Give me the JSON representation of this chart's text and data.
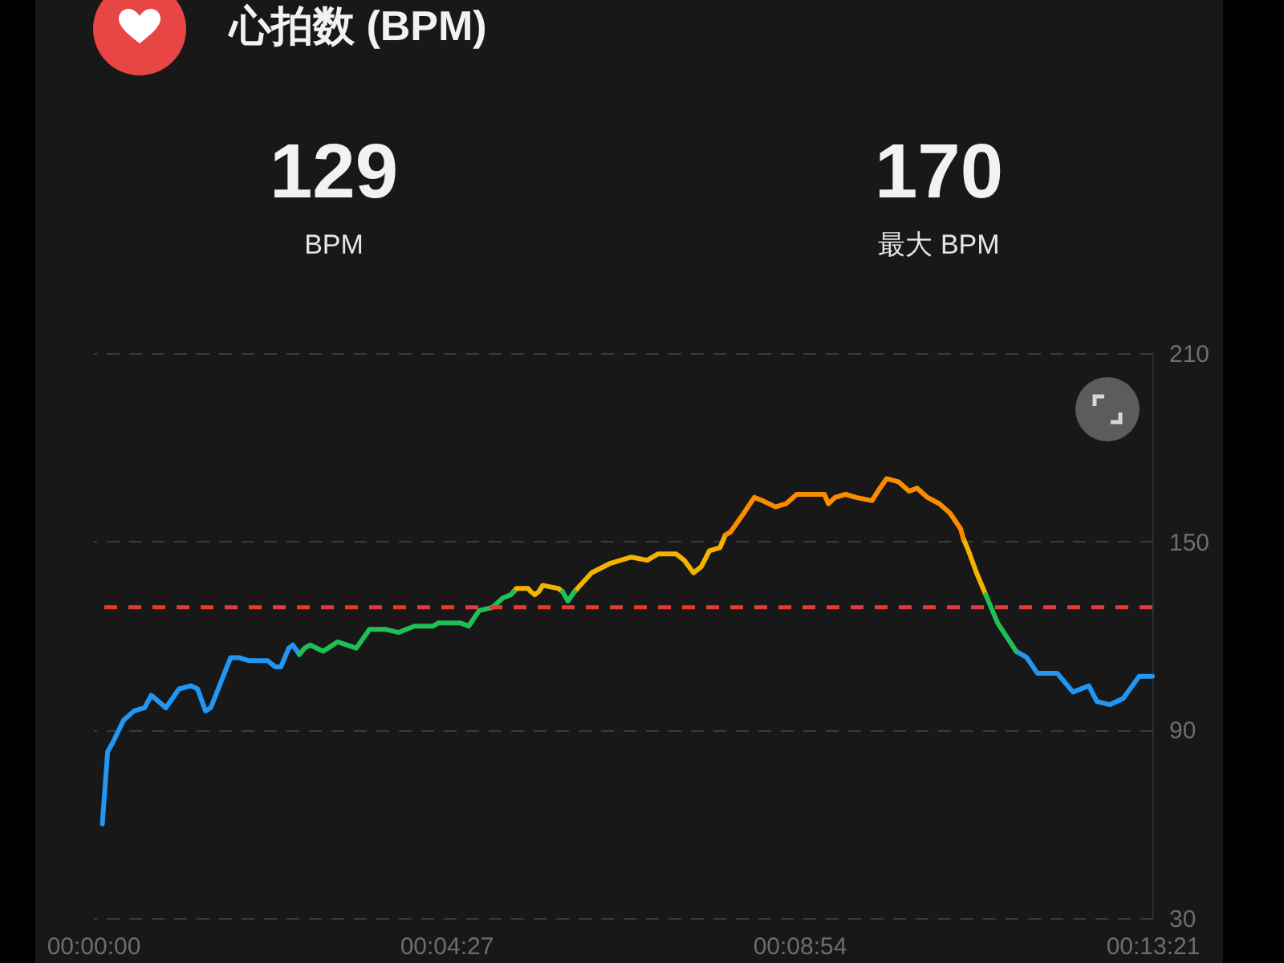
{
  "chart_data": {
    "type": "line",
    "title": "心拍数 (BPM)",
    "annotations": [
      "129",
      "BPM",
      "170",
      "最大 BPM"
    ],
    "xlim": [
      0,
      801
    ],
    "xticks": [
      {
        "value": 0,
        "label": "00:00:00"
      },
      {
        "value": 267,
        "label": "00:04:27"
      },
      {
        "value": 534,
        "label": "00:08:54"
      },
      {
        "value": 801,
        "label": "00:13:21"
      }
    ],
    "ylim": [
      30,
      210
    ],
    "yticks": [
      30,
      90,
      150,
      210
    ],
    "grid": "y",
    "ref_lines": [
      {
        "axis": "y",
        "value": 129,
        "color": "#e53935",
        "line_style": "dashed"
      }
    ],
    "x": [
      7,
      11,
      15,
      23,
      31,
      39,
      44,
      55,
      65,
      74,
      79,
      85,
      89,
      104,
      110,
      118,
      132,
      138,
      142,
      148,
      151,
      156,
      160,
      164,
      174,
      185,
      199,
      209,
      221,
      231,
      243,
      257,
      261,
      278,
      284,
      292,
      302,
      310,
      316,
      318,
      320,
      329,
      331,
      334,
      337,
      340,
      352,
      355,
      359,
      364,
      377,
      391,
      407,
      419,
      427,
      441,
      447,
      454,
      460,
      466,
      474,
      478,
      482,
      492,
      500,
      506,
      516,
      524,
      532,
      553,
      556,
      561,
      569,
      577,
      589,
      595,
      600,
      609,
      617,
      623,
      631,
      640,
      648,
      656,
      658,
      662,
      668,
      675,
      684,
      698,
      706,
      714,
      729,
      741,
      753,
      759,
      769,
      779,
      791,
      801
    ],
    "series": [
      {
        "color": "#2196f3",
        "values": [
          60,
          83,
          86,
          93,
          96,
          97,
          101,
          97,
          103,
          104,
          103,
          96,
          97,
          113,
          113,
          112,
          112,
          110,
          110,
          116,
          117,
          114,
          null,
          null,
          null,
          null,
          null,
          null,
          null,
          null,
          null,
          null,
          null,
          null,
          null,
          null,
          null,
          null,
          null,
          null,
          null,
          null,
          null,
          null,
          null,
          null,
          null,
          null,
          null,
          null,
          null,
          null,
          null,
          null,
          null,
          null,
          null,
          null,
          null,
          null,
          null,
          null,
          null,
          null,
          null,
          null,
          null,
          null,
          null,
          null,
          null,
          null,
          null,
          null,
          null,
          null,
          null,
          null,
          null,
          null,
          null,
          null,
          null,
          null,
          null,
          null,
          null,
          null,
          null,
          115,
          113,
          108,
          108,
          102,
          104,
          99,
          98,
          100,
          107,
          107
        ]
      },
      {
        "color": "#f5b301",
        "values": [
          null,
          null,
          null,
          null,
          null,
          null,
          null,
          null,
          null,
          null,
          null,
          null,
          null,
          null,
          null,
          null,
          null,
          null,
          null,
          null,
          null,
          null,
          null,
          null,
          null,
          null,
          null,
          null,
          null,
          null,
          null,
          null,
          null,
          null,
          null,
          null,
          null,
          null,
          null,
          134,
          135,
          135,
          134,
          133,
          134,
          136,
          135,
          134,
          null,
          134,
          140,
          143,
          145,
          144,
          146,
          146,
          144,
          140,
          142,
          147,
          148,
          152,
          null,
          null,
          null,
          null,
          null,
          null,
          null,
          null,
          null,
          null,
          null,
          null,
          null,
          null,
          null,
          null,
          null,
          null,
          null,
          null,
          null,
          null,
          151,
          147,
          140,
          133,
          null,
          null,
          null,
          null,
          null,
          null,
          null,
          null,
          null,
          null,
          null,
          null
        ]
      },
      {
        "color": "#fb8c00",
        "values": [
          null,
          null,
          null,
          null,
          null,
          null,
          null,
          null,
          null,
          null,
          null,
          null,
          null,
          null,
          null,
          null,
          null,
          null,
          null,
          null,
          null,
          null,
          null,
          null,
          null,
          null,
          null,
          null,
          null,
          null,
          null,
          null,
          null,
          null,
          null,
          null,
          null,
          null,
          null,
          null,
          null,
          null,
          null,
          null,
          null,
          null,
          null,
          null,
          null,
          null,
          null,
          null,
          null,
          null,
          null,
          null,
          null,
          null,
          null,
          null,
          null,
          152,
          153,
          159,
          164,
          163,
          161,
          162,
          165,
          165,
          162,
          164,
          165,
          164,
          163,
          167,
          170,
          169,
          166,
          167,
          164,
          162,
          159,
          154,
          151,
          null,
          null,
          null,
          null,
          null,
          null,
          null,
          null,
          null,
          null,
          null,
          null,
          null,
          null,
          null
        ]
      },
      {
        "color": "#1fc157",
        "values": [
          null,
          null,
          null,
          null,
          null,
          null,
          null,
          null,
          null,
          null,
          null,
          null,
          null,
          null,
          null,
          null,
          null,
          null,
          null,
          null,
          null,
          114,
          116,
          117,
          115,
          118,
          116,
          122,
          122,
          121,
          123,
          123,
          124,
          124,
          123,
          128,
          129,
          132,
          133,
          134,
          null,
          null,
          null,
          null,
          null,
          null,
          null,
          134,
          131,
          134,
          null,
          null,
          null,
          null,
          null,
          null,
          null,
          null,
          null,
          null,
          null,
          null,
          null,
          null,
          null,
          null,
          null,
          null,
          null,
          null,
          null,
          null,
          null,
          null,
          null,
          null,
          null,
          null,
          null,
          null,
          null,
          null,
          null,
          null,
          null,
          null,
          null,
          133,
          124,
          115,
          null,
          null,
          null,
          null,
          null,
          null,
          null,
          null,
          null,
          null
        ]
      }
    ]
  }
}
